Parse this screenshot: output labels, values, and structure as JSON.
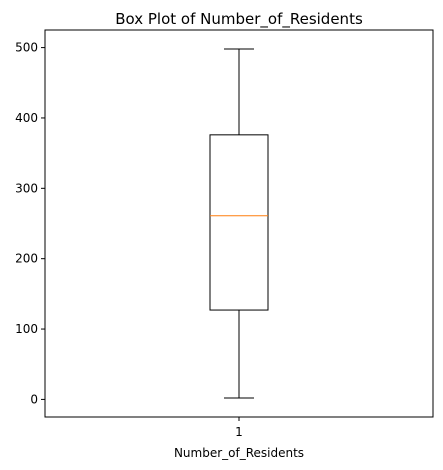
{
  "chart_data": {
    "type": "box",
    "title": "Box Plot of Number_of_Residents",
    "xlabel": "Number_of_Residents",
    "ylabel": "",
    "categories": [
      "1"
    ],
    "ylim": [
      -25,
      525
    ],
    "yticks": [
      0,
      100,
      200,
      300,
      400,
      500
    ],
    "grid": false,
    "boxes": [
      {
        "whisker_low": 2,
        "q1": 127,
        "median": 261,
        "q3": 376,
        "whisker_high": 498
      }
    ],
    "colors": {
      "box": "#000000",
      "median": "#ff7f0e",
      "whisker": "#000000"
    }
  }
}
